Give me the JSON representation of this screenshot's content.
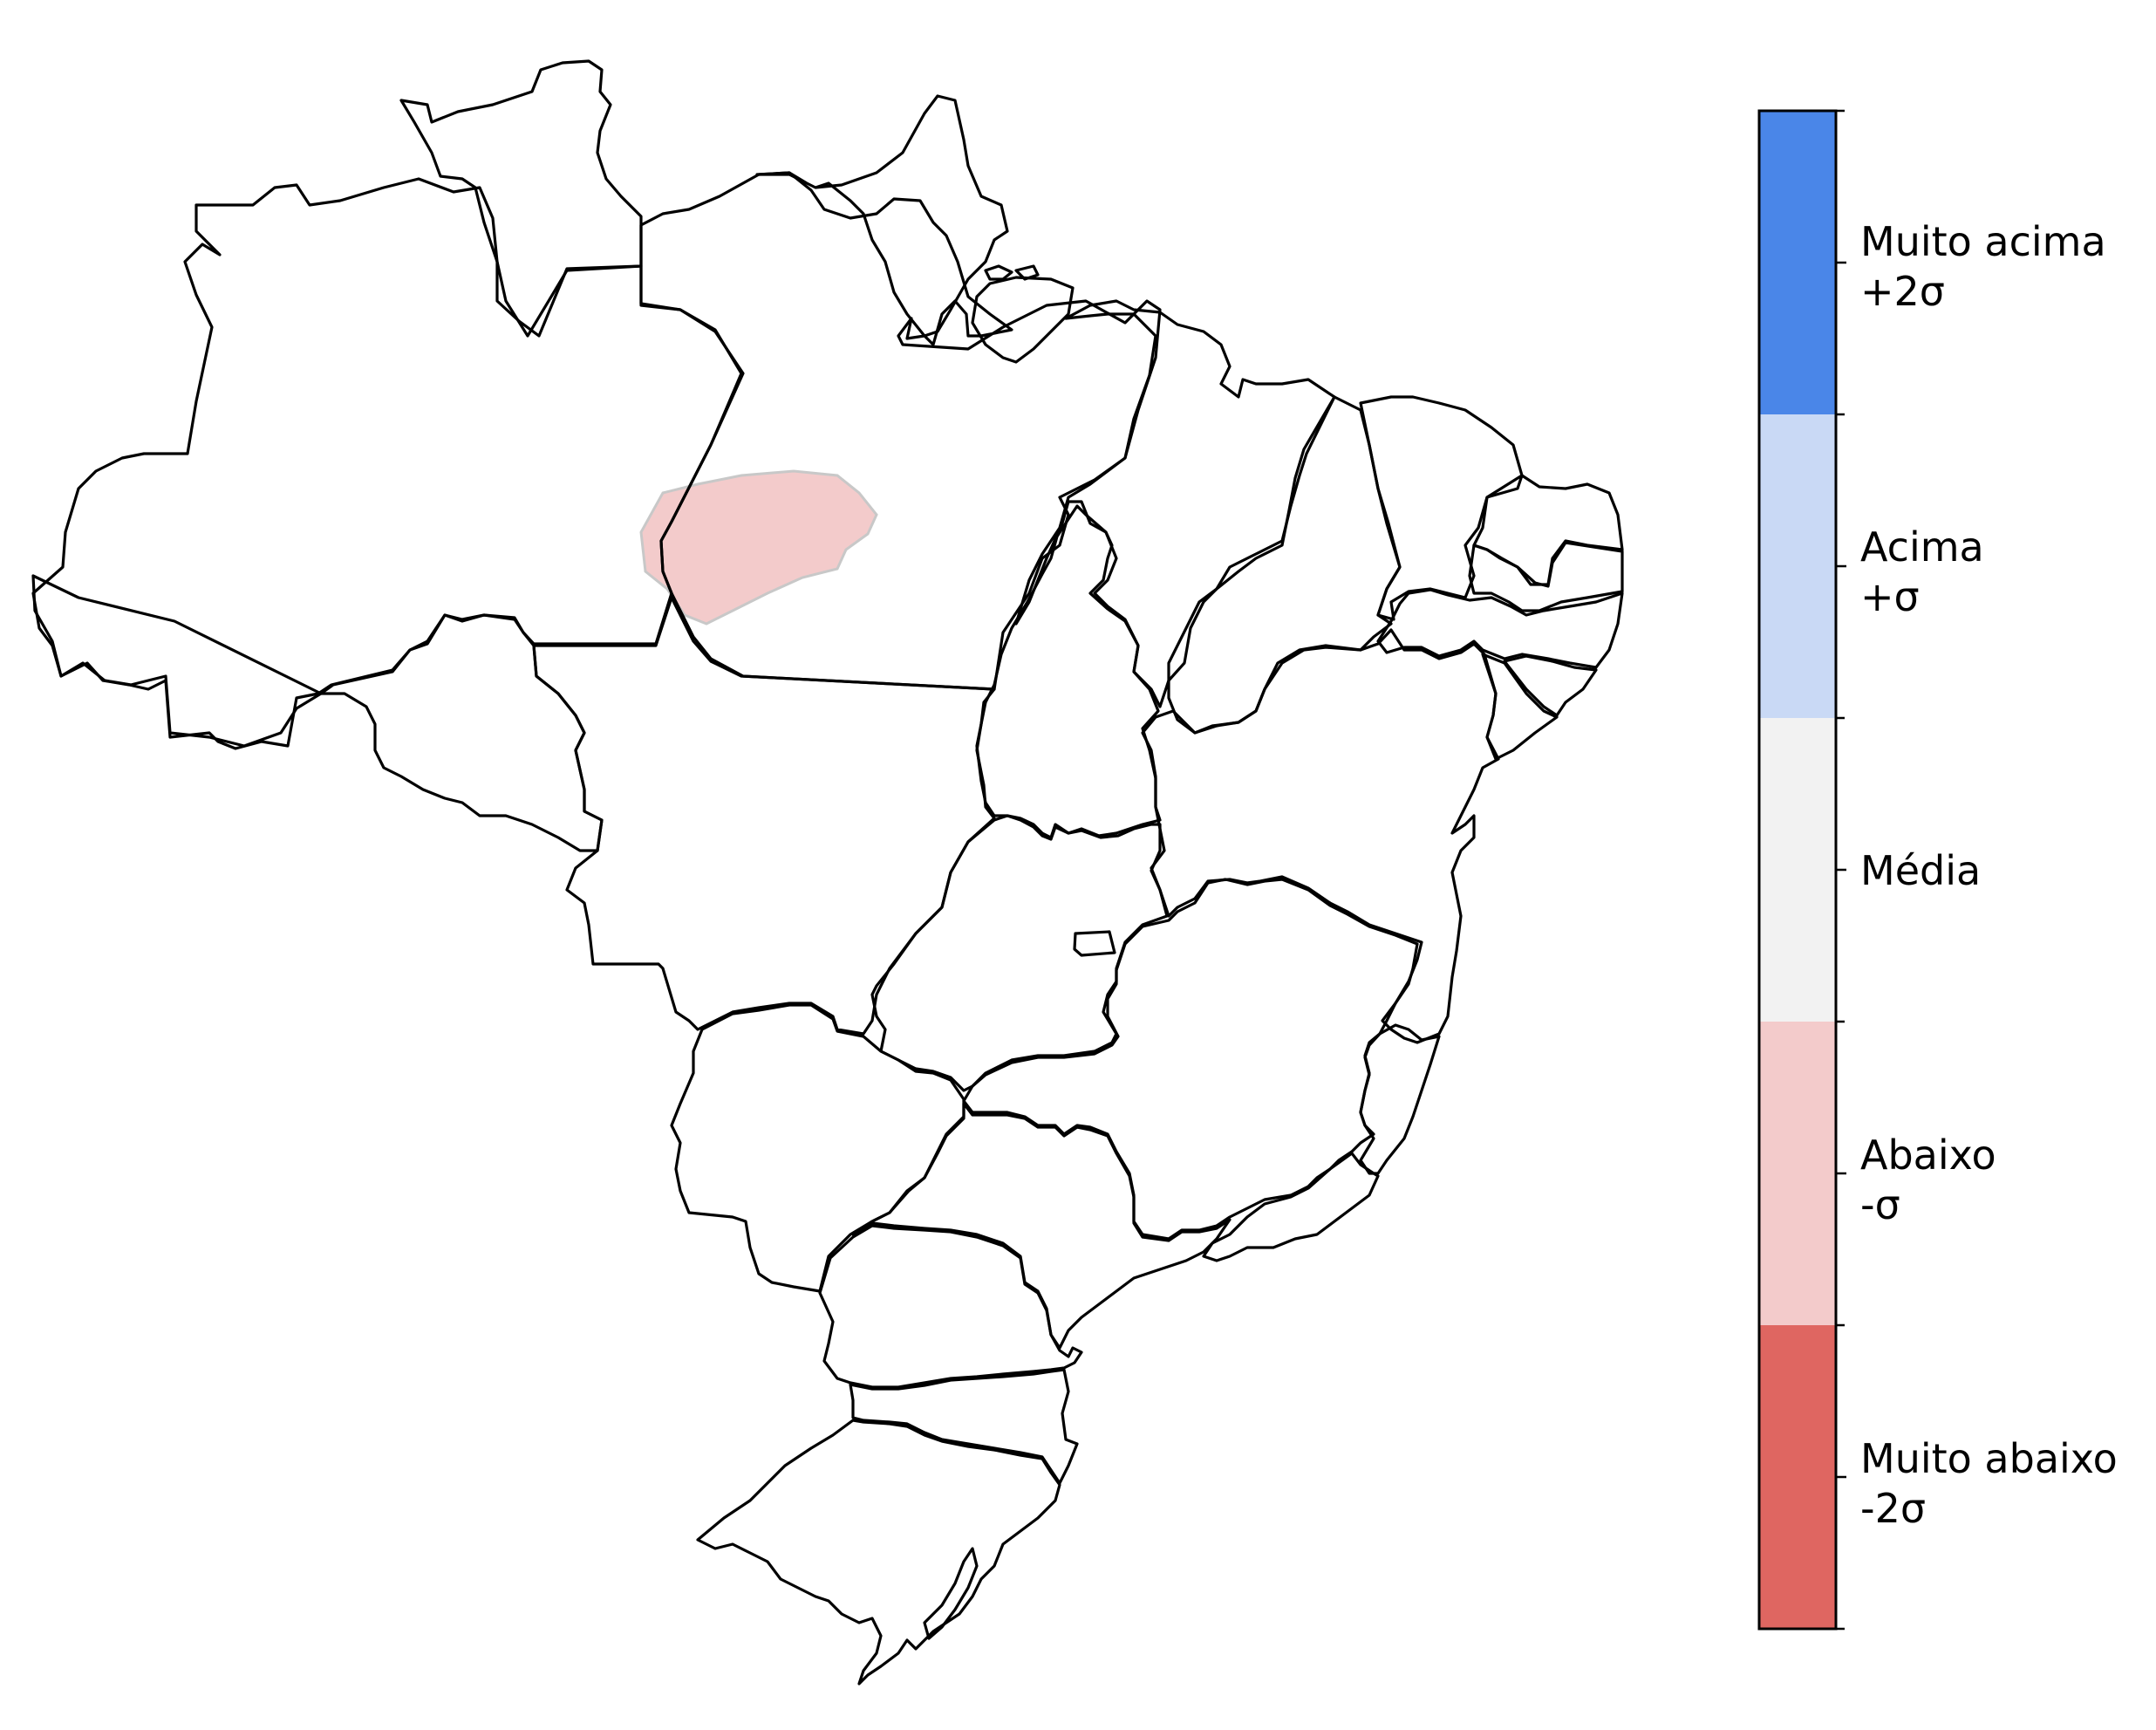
{
  "colors": {
    "muito_acima": "#4a86e8",
    "acima": "#c9d9f5",
    "media": "#f2f2f2",
    "abaixo": "#f3cbcb",
    "muito_abaixo": "#df6661",
    "anomaly_fill": "#f3cbcb",
    "anomaly_edge": "#c8c8c8",
    "outline": "#000000"
  },
  "colorbar": {
    "categories": [
      {
        "key": "muito_acima",
        "line1": "Muito acima",
        "line2": "+2σ",
        "color": "#4a86e8"
      },
      {
        "key": "acima",
        "line1": "Acima",
        "line2": "+σ",
        "color": "#c9d9f5"
      },
      {
        "key": "media",
        "line1": "Média",
        "line2": "",
        "color": "#f2f2f2"
      },
      {
        "key": "abaixo",
        "line1": "Abaixo",
        "line2": "-σ",
        "color": "#f3cbcb"
      },
      {
        "key": "muito_abaixo",
        "line1": "Muito abaixo",
        "line2": "-2σ",
        "color": "#df6661"
      }
    ]
  },
  "map": {
    "anomaly_region_category": "abaixo"
  }
}
